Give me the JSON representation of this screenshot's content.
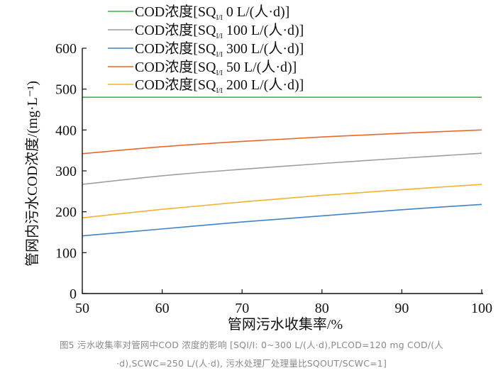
{
  "chart_data": {
    "type": "line",
    "x": [
      50,
      60,
      70,
      80,
      90,
      100
    ],
    "xlim": [
      50,
      100
    ],
    "ylim": [
      0,
      600
    ],
    "xticks": [
      "50",
      "60",
      "70",
      "80",
      "90",
      "100"
    ],
    "yticks": [
      "0",
      "100",
      "200",
      "300",
      "400",
      "500",
      "600"
    ],
    "xlabel": "管网污水收集率/%",
    "ylabel": "管网内污水COD浓度/(mg·L⁻¹)",
    "legend_position": "top-left",
    "grid": false,
    "series": [
      {
        "name": "COD浓度[SQI/I 0 L/(人·d)]",
        "color": "#3cb54a",
        "values": [
          480,
          480,
          480,
          480,
          480,
          480
        ]
      },
      {
        "name": "COD浓度[SQI/I 100 L/(人·d)]",
        "color": "#9e9e9e",
        "values": [
          267,
          288,
          304,
          318,
          331,
          343
        ]
      },
      {
        "name": "COD浓度[SQI/I 300 L/(人·d)]",
        "color": "#3f83c9",
        "values": [
          141,
          158,
          175,
          190,
          205,
          218
        ]
      },
      {
        "name": "COD浓度[SQI/I 50 L/(人·d)]",
        "color": "#e8692b",
        "values": [
          342,
          359,
          372,
          383,
          392,
          400
        ]
      },
      {
        "name": "COD浓度[SQI/I 200 L/(人·d)]",
        "color": "#f5b22e",
        "values": [
          185,
          206,
          224,
          240,
          254,
          267
        ]
      }
    ]
  },
  "legend_labels": [
    {
      "pre": "COD浓度[SQ",
      "sub": "I/I",
      "post": " 0 L/(人·d)]"
    },
    {
      "pre": "COD浓度[SQ",
      "sub": "I/I",
      "post": " 100 L/(人·d)]"
    },
    {
      "pre": "COD浓度[SQ",
      "sub": "I/I",
      "post": " 300 L/(人·d)]"
    },
    {
      "pre": "COD浓度[SQ",
      "sub": "I/I",
      "post": " 50 L/(人·d)]"
    },
    {
      "pre": "COD浓度[SQ",
      "sub": "I/I",
      "post": " 200 L/(人·d)]"
    }
  ],
  "caption": {
    "line1": "图5 污水收集率对管网中COD 浓度的影响 [SQI/I: 0~300 L/(人·d),PLCOD=120 mg COD/(人",
    "line2": "·d),SCWC=250 L/(人·d), 污水处理厂处理量比SQOUT/SCWC=1]"
  }
}
